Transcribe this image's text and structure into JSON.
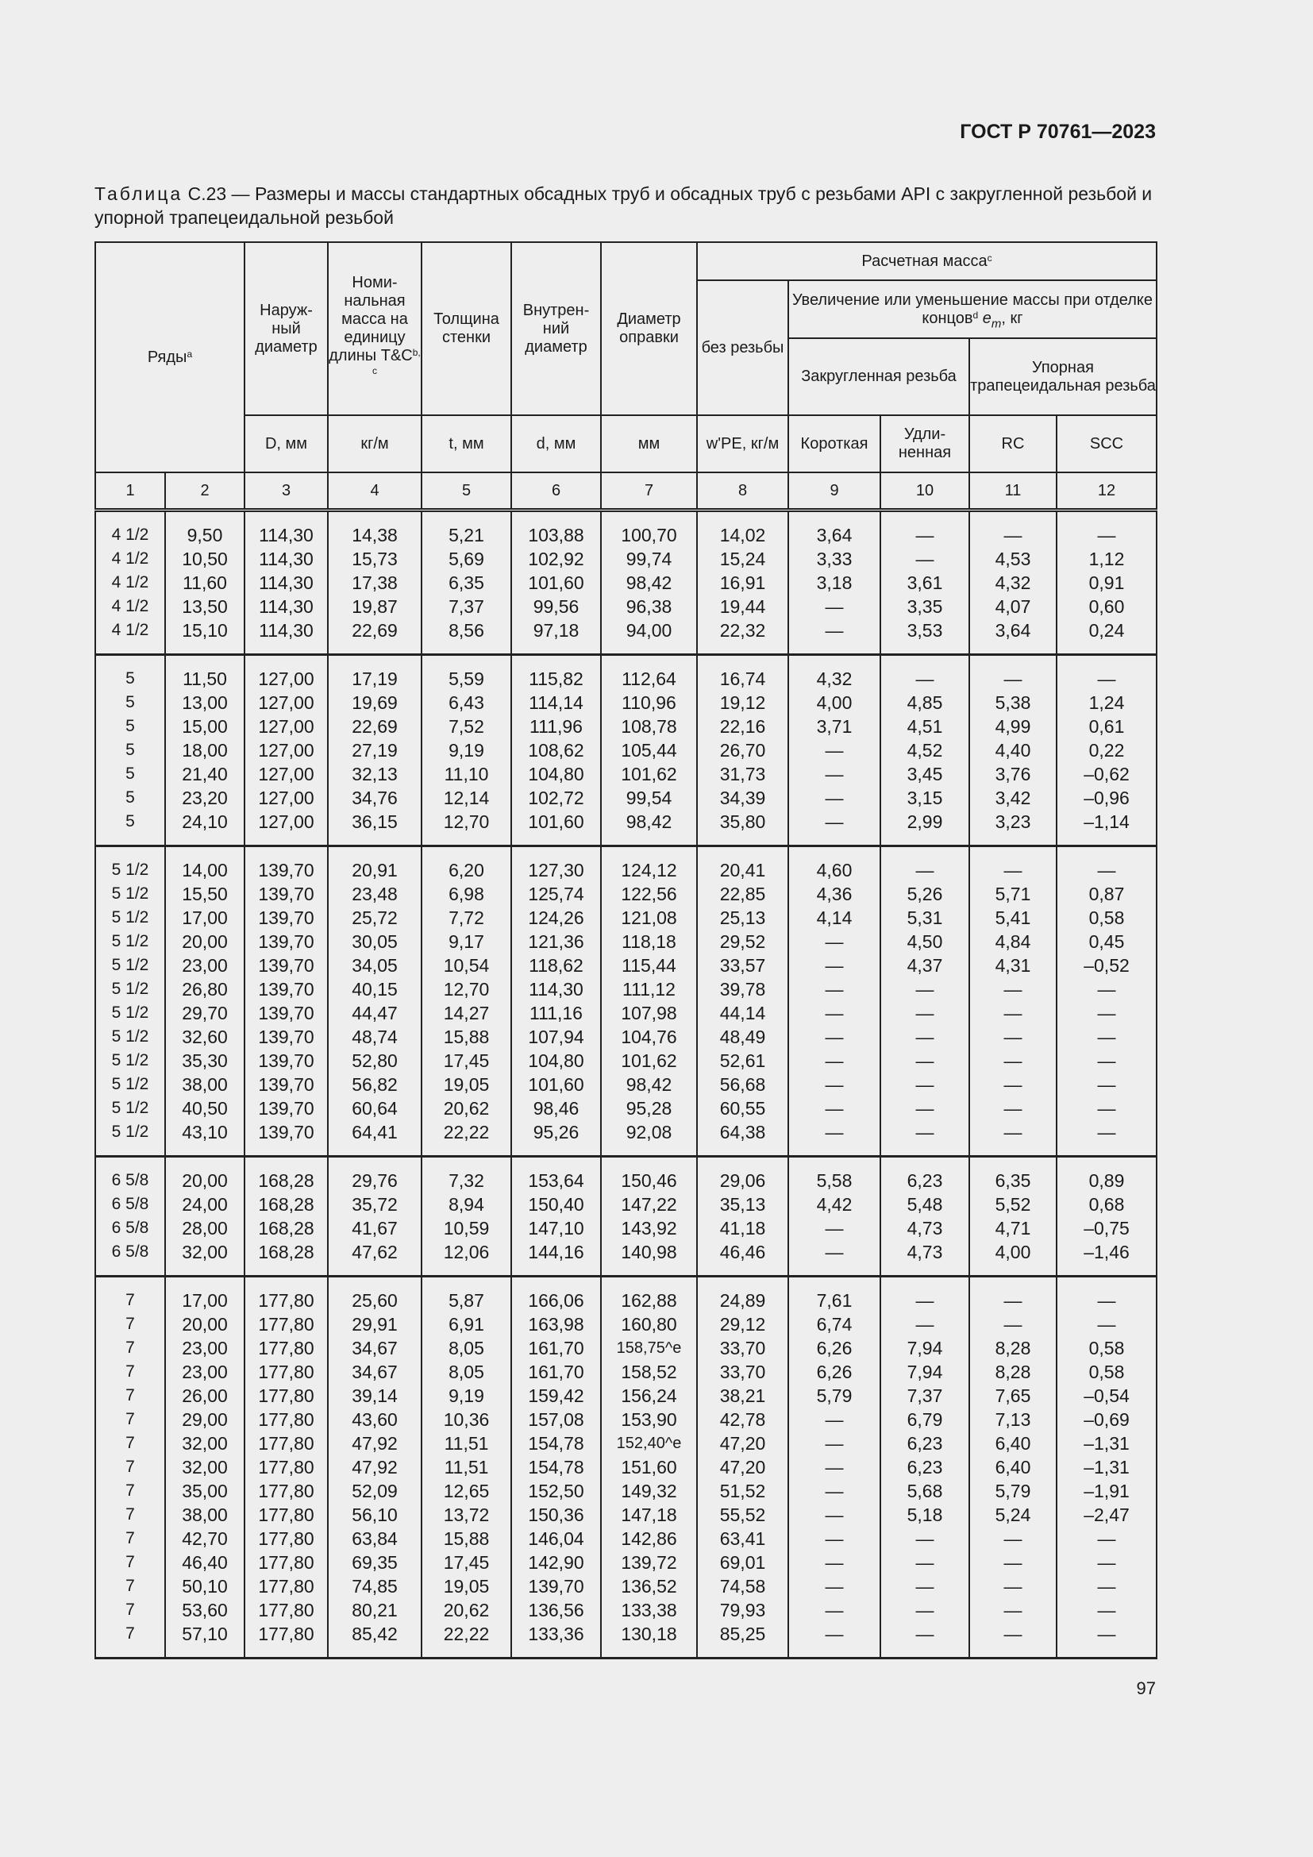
{
  "header": {
    "standard": "ГОСТ Р 70761—2023"
  },
  "caption": {
    "label": "Таблица",
    "text": " С.23 — Размеры и массы стандартных обсадных труб и обсадных труб с резьбами API с закругленной резьбой и упорной трапецеидальной резьбой"
  },
  "table": {
    "headers": {
      "series": "Ряды",
      "series_sup": "a",
      "od": "Наруж-ный диаметр",
      "mass": "Номи-нальная масса на единицу длины T&C",
      "mass_sup": "b, c",
      "wall": "Толщина стенки",
      "id": "Внутрен-ний диаметр",
      "drift": "Диаметр оправки",
      "calc_mass": "Расчетная масса",
      "calc_mass_sup": "c",
      "plain": "без резьбы",
      "change": "Увеличение или уменьшение массы при отделке концов",
      "change_sup": "d",
      "change_sym": "e",
      "change_sub": "m",
      "change_unit": ", кг",
      "round": "Закругленная резьба",
      "buttress": "Упорная трапецеидальная резьба",
      "u_od": "D, мм",
      "u_mass": "кг/м",
      "u_wall": "t, мм",
      "u_id": "d, мм",
      "u_drift": "мм",
      "u_plain": "w'PE, кг/м",
      "short": "Короткая",
      "long": "Удли-ненная",
      "rc": "RC",
      "scc": "SCC",
      "numbers": [
        "1",
        "2",
        "3",
        "4",
        "5",
        "6",
        "7",
        "8",
        "9",
        "10",
        "11",
        "12"
      ]
    },
    "blocks": [
      [
        [
          "4 1/2",
          "9,50",
          "114,30",
          "14,38",
          "5,21",
          "103,88",
          "100,70",
          "14,02",
          "3,64",
          "—",
          "—",
          "—"
        ],
        [
          "4 1/2",
          "10,50",
          "114,30",
          "15,73",
          "5,69",
          "102,92",
          "99,74",
          "15,24",
          "3,33",
          "—",
          "4,53",
          "1,12"
        ],
        [
          "4 1/2",
          "11,60",
          "114,30",
          "17,38",
          "6,35",
          "101,60",
          "98,42",
          "16,91",
          "3,18",
          "3,61",
          "4,32",
          "0,91"
        ],
        [
          "4 1/2",
          "13,50",
          "114,30",
          "19,87",
          "7,37",
          "99,56",
          "96,38",
          "19,44",
          "—",
          "3,35",
          "4,07",
          "0,60"
        ],
        [
          "4 1/2",
          "15,10",
          "114,30",
          "22,69",
          "8,56",
          "97,18",
          "94,00",
          "22,32",
          "—",
          "3,53",
          "3,64",
          "0,24"
        ]
      ],
      [
        [
          "5",
          "11,50",
          "127,00",
          "17,19",
          "5,59",
          "115,82",
          "112,64",
          "16,74",
          "4,32",
          "—",
          "—",
          "—"
        ],
        [
          "5",
          "13,00",
          "127,00",
          "19,69",
          "6,43",
          "114,14",
          "110,96",
          "19,12",
          "4,00",
          "4,85",
          "5,38",
          "1,24"
        ],
        [
          "5",
          "15,00",
          "127,00",
          "22,69",
          "7,52",
          "111,96",
          "108,78",
          "22,16",
          "3,71",
          "4,51",
          "4,99",
          "0,61"
        ],
        [
          "5",
          "18,00",
          "127,00",
          "27,19",
          "9,19",
          "108,62",
          "105,44",
          "26,70",
          "—",
          "4,52",
          "4,40",
          "0,22"
        ],
        [
          "5",
          "21,40",
          "127,00",
          "32,13",
          "11,10",
          "104,80",
          "101,62",
          "31,73",
          "—",
          "3,45",
          "3,76",
          "–0,62"
        ],
        [
          "5",
          "23,20",
          "127,00",
          "34,76",
          "12,14",
          "102,72",
          "99,54",
          "34,39",
          "—",
          "3,15",
          "3,42",
          "–0,96"
        ],
        [
          "5",
          "24,10",
          "127,00",
          "36,15",
          "12,70",
          "101,60",
          "98,42",
          "35,80",
          "—",
          "2,99",
          "3,23",
          "–1,14"
        ]
      ],
      [
        [
          "5 1/2",
          "14,00",
          "139,70",
          "20,91",
          "6,20",
          "127,30",
          "124,12",
          "20,41",
          "4,60",
          "—",
          "—",
          "—"
        ],
        [
          "5 1/2",
          "15,50",
          "139,70",
          "23,48",
          "6,98",
          "125,74",
          "122,56",
          "22,85",
          "4,36",
          "5,26",
          "5,71",
          "0,87"
        ],
        [
          "5 1/2",
          "17,00",
          "139,70",
          "25,72",
          "7,72",
          "124,26",
          "121,08",
          "25,13",
          "4,14",
          "5,31",
          "5,41",
          "0,58"
        ],
        [
          "5 1/2",
          "20,00",
          "139,70",
          "30,05",
          "9,17",
          "121,36",
          "118,18",
          "29,52",
          "—",
          "4,50",
          "4,84",
          "0,45"
        ],
        [
          "5 1/2",
          "23,00",
          "139,70",
          "34,05",
          "10,54",
          "118,62",
          "115,44",
          "33,57",
          "—",
          "4,37",
          "4,31",
          "–0,52"
        ],
        [
          "5 1/2",
          "26,80",
          "139,70",
          "40,15",
          "12,70",
          "114,30",
          "111,12",
          "39,78",
          "—",
          "—",
          "—",
          "—"
        ],
        [
          "5 1/2",
          "29,70",
          "139,70",
          "44,47",
          "14,27",
          "111,16",
          "107,98",
          "44,14",
          "—",
          "—",
          "—",
          "—"
        ],
        [
          "5 1/2",
          "32,60",
          "139,70",
          "48,74",
          "15,88",
          "107,94",
          "104,76",
          "48,49",
          "—",
          "—",
          "—",
          "—"
        ],
        [
          "5 1/2",
          "35,30",
          "139,70",
          "52,80",
          "17,45",
          "104,80",
          "101,62",
          "52,61",
          "—",
          "—",
          "—",
          "—"
        ],
        [
          "5 1/2",
          "38,00",
          "139,70",
          "56,82",
          "19,05",
          "101,60",
          "98,42",
          "56,68",
          "—",
          "—",
          "—",
          "—"
        ],
        [
          "5 1/2",
          "40,50",
          "139,70",
          "60,64",
          "20,62",
          "98,46",
          "95,28",
          "60,55",
          "—",
          "—",
          "—",
          "—"
        ],
        [
          "5 1/2",
          "43,10",
          "139,70",
          "64,41",
          "22,22",
          "95,26",
          "92,08",
          "64,38",
          "—",
          "—",
          "—",
          "—"
        ]
      ],
      [
        [
          "6 5/8",
          "20,00",
          "168,28",
          "29,76",
          "7,32",
          "153,64",
          "150,46",
          "29,06",
          "5,58",
          "6,23",
          "6,35",
          "0,89"
        ],
        [
          "6 5/8",
          "24,00",
          "168,28",
          "35,72",
          "8,94",
          "150,40",
          "147,22",
          "35,13",
          "4,42",
          "5,48",
          "5,52",
          "0,68"
        ],
        [
          "6 5/8",
          "28,00",
          "168,28",
          "41,67",
          "10,59",
          "147,10",
          "143,92",
          "41,18",
          "—",
          "4,73",
          "4,71",
          "–0,75"
        ],
        [
          "6 5/8",
          "32,00",
          "168,28",
          "47,62",
          "12,06",
          "144,16",
          "140,98",
          "46,46",
          "—",
          "4,73",
          "4,00",
          "–1,46"
        ]
      ],
      [
        [
          "7",
          "17,00",
          "177,80",
          "25,60",
          "5,87",
          "166,06",
          "162,88",
          "24,89",
          "7,61",
          "—",
          "—",
          "—"
        ],
        [
          "7",
          "20,00",
          "177,80",
          "29,91",
          "6,91",
          "163,98",
          "160,80",
          "29,12",
          "6,74",
          "—",
          "—",
          "—"
        ],
        [
          "7",
          "23,00",
          "177,80",
          "34,67",
          "8,05",
          "161,70",
          "158,75^e",
          "33,70",
          "6,26",
          "7,94",
          "8,28",
          "0,58"
        ],
        [
          "7",
          "23,00",
          "177,80",
          "34,67",
          "8,05",
          "161,70",
          "158,52",
          "33,70",
          "6,26",
          "7,94",
          "8,28",
          "0,58"
        ],
        [
          "7",
          "26,00",
          "177,80",
          "39,14",
          "9,19",
          "159,42",
          "156,24",
          "38,21",
          "5,79",
          "7,37",
          "7,65",
          "–0,54"
        ],
        [
          "7",
          "29,00",
          "177,80",
          "43,60",
          "10,36",
          "157,08",
          "153,90",
          "42,78",
          "—",
          "6,79",
          "7,13",
          "–0,69"
        ],
        [
          "7",
          "32,00",
          "177,80",
          "47,92",
          "11,51",
          "154,78",
          "152,40^e",
          "47,20",
          "—",
          "6,23",
          "6,40",
          "–1,31"
        ],
        [
          "7",
          "32,00",
          "177,80",
          "47,92",
          "11,51",
          "154,78",
          "151,60",
          "47,20",
          "—",
          "6,23",
          "6,40",
          "–1,31"
        ],
        [
          "7",
          "35,00",
          "177,80",
          "52,09",
          "12,65",
          "152,50",
          "149,32",
          "51,52",
          "—",
          "5,68",
          "5,79",
          "–1,91"
        ],
        [
          "7",
          "38,00",
          "177,80",
          "56,10",
          "13,72",
          "150,36",
          "147,18",
          "55,52",
          "—",
          "5,18",
          "5,24",
          "–2,47"
        ],
        [
          "7",
          "42,70",
          "177,80",
          "63,84",
          "15,88",
          "146,04",
          "142,86",
          "63,41",
          "—",
          "—",
          "—",
          "—"
        ],
        [
          "7",
          "46,40",
          "177,80",
          "69,35",
          "17,45",
          "142,90",
          "139,72",
          "69,01",
          "—",
          "—",
          "—",
          "—"
        ],
        [
          "7",
          "50,10",
          "177,80",
          "74,85",
          "19,05",
          "139,70",
          "136,52",
          "74,58",
          "—",
          "—",
          "—",
          "—"
        ],
        [
          "7",
          "53,60",
          "177,80",
          "80,21",
          "20,62",
          "136,56",
          "133,38",
          "79,93",
          "—",
          "—",
          "—",
          "—"
        ],
        [
          "7",
          "57,10",
          "177,80",
          "85,42",
          "22,22",
          "133,36",
          "130,18",
          "85,25",
          "—",
          "—",
          "—",
          "—"
        ]
      ]
    ]
  },
  "footer": {
    "page_number": "97"
  }
}
